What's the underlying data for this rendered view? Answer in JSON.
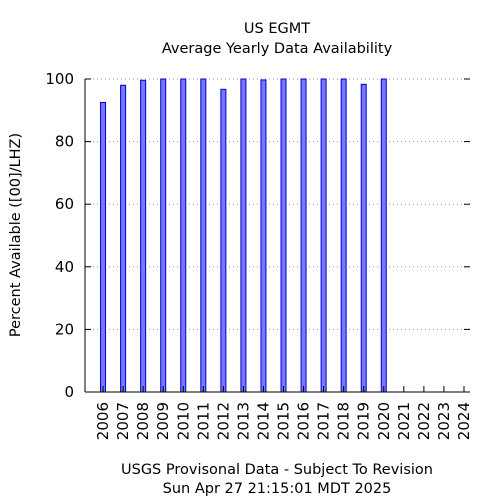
{
  "chart_data": {
    "type": "bar",
    "title": "US EGMT",
    "subtitle": "Average Yearly Data Availability",
    "ylabel": "Percent Available ([00]/LHZ)",
    "xlabel": "",
    "categories": [
      "2006",
      "2007",
      "2008",
      "2009",
      "2010",
      "2011",
      "2012",
      "2013",
      "2014",
      "2015",
      "2016",
      "2017",
      "2018",
      "2019",
      "2020",
      "2021",
      "2022",
      "2023",
      "2024"
    ],
    "values": [
      92.5,
      98,
      99.6,
      100,
      100,
      100,
      96.7,
      100,
      99.7,
      100,
      100,
      100,
      100,
      98.3,
      100,
      0,
      0,
      0,
      0
    ],
    "ylim": [
      0,
      100
    ],
    "yticks": [
      0,
      20,
      40,
      60,
      80,
      100
    ],
    "grid": true,
    "bar_color": "#7777ff",
    "bar_edge": "#0000cc",
    "grid_color": "#999999"
  },
  "footer": {
    "line1": "USGS Provisonal Data - Subject To Revision",
    "line2": "Sun Apr 27 21:15:01 MDT 2025"
  }
}
